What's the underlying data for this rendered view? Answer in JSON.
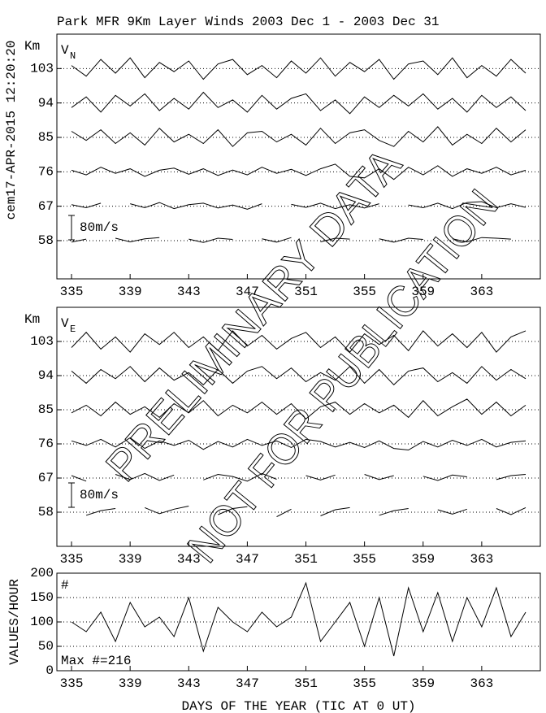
{
  "title": "Park MFR 9Km Layer Winds 2003 Dec  1 - 2003 Dec 31",
  "timestamp": "cem17-APR-2015 12:20:20",
  "watermark": [
    "PRELIMINARY DATA",
    "NOT FOR PUBLICATION"
  ],
  "chart_data": [
    {
      "type": "line",
      "ylabel": "Km",
      "panel_label": "V",
      "panel_label_sub": "N",
      "scale_bar": {
        "value": 80,
        "label": "80m/s"
      },
      "xlim": [
        334,
        367
      ],
      "xticks": [
        335,
        339,
        343,
        347,
        351,
        355,
        359,
        363
      ],
      "ylim": [
        48,
        112
      ],
      "yticks": [
        58,
        67,
        76,
        85,
        94,
        103
      ],
      "grid": true,
      "x": [
        335,
        336,
        337,
        338,
        339,
        340,
        341,
        342,
        343,
        344,
        345,
        346,
        347,
        348,
        349,
        350,
        351,
        352,
        353,
        354,
        355,
        356,
        357,
        358,
        359,
        360,
        361,
        362,
        363,
        364,
        365,
        366
      ],
      "series": [
        {
          "offset": 103,
          "color": "#000000",
          "values": [
            10,
            -25,
            30,
            -15,
            35,
            -30,
            20,
            -10,
            25,
            -35,
            15,
            30,
            -20,
            10,
            -30,
            25,
            -15,
            35,
            -25,
            20,
            -10,
            30,
            -35,
            15,
            25,
            -20,
            35,
            -30,
            10,
            -25,
            30,
            -15
          ]
        },
        {
          "offset": 94,
          "color": "#000000",
          "values": [
            -15,
            20,
            -30,
            25,
            -10,
            30,
            -25,
            15,
            -20,
            35,
            -15,
            10,
            -30,
            25,
            -20,
            15,
            30,
            -25,
            10,
            -35,
            20,
            -15,
            25,
            -10,
            30,
            -20,
            15,
            -30,
            25,
            -15,
            20,
            -25
          ]
        },
        {
          "offset": 85,
          "color": "#000000",
          "values": [
            20,
            -10,
            25,
            -20,
            15,
            -25,
            30,
            -15,
            10,
            -20,
            25,
            -30,
            15,
            20,
            -15,
            10,
            -25,
            30,
            -20,
            15,
            25,
            -10,
            -30,
            20,
            -15,
            35,
            -25,
            10,
            -20,
            30,
            -15,
            25
          ]
        },
        {
          "offset": 76,
          "color": "#000000",
          "values": [
            5,
            -10,
            15,
            -5,
            10,
            -15,
            5,
            12,
            -8,
            10,
            -12,
            6,
            -10,
            15,
            -5,
            8,
            -12,
            10,
            25,
            -15,
            -20,
            10,
            -25,
            15,
            -10,
            20,
            -15,
            10,
            -5,
            15,
            -10,
            5
          ]
        },
        {
          "offset": 67,
          "color": "#000000",
          "values": [
            5,
            -5,
            10,
            null,
            8,
            -5,
            12,
            -8,
            5,
            10,
            -6,
            4,
            -10,
            8,
            null,
            6,
            -4,
            10,
            -8,
            5,
            -6,
            8,
            null,
            4,
            -5,
            10,
            -8,
            12,
            15,
            -5,
            8,
            -4
          ]
        },
        {
          "offset": 58,
          "color": "#000000",
          "values": [
            -5,
            5,
            null,
            8,
            -4,
            6,
            10,
            null,
            5,
            -6,
            8,
            4,
            null,
            6,
            -5,
            10,
            null,
            -4,
            8,
            5,
            null,
            6,
            -5,
            8,
            4,
            null,
            6,
            -4,
            10,
            8,
            5,
            null
          ]
        }
      ]
    },
    {
      "type": "line",
      "ylabel": "Km",
      "panel_label": "V",
      "panel_label_sub": "E",
      "scale_bar": {
        "value": 80,
        "label": "80m/s"
      },
      "xlim": [
        334,
        367
      ],
      "xticks": [
        335,
        339,
        343,
        347,
        351,
        355,
        359,
        363
      ],
      "ylim": [
        49,
        112
      ],
      "yticks": [
        58,
        67,
        76,
        85,
        94,
        103
      ],
      "grid": true,
      "x": [
        335,
        336,
        337,
        338,
        339,
        340,
        341,
        342,
        343,
        344,
        345,
        346,
        347,
        348,
        349,
        350,
        351,
        352,
        353,
        354,
        355,
        356,
        357,
        358,
        359,
        360,
        361,
        362,
        363,
        364,
        365,
        366
      ],
      "series": [
        {
          "offset": 103,
          "color": "#000000",
          "values": [
            -20,
            30,
            -25,
            15,
            -35,
            25,
            -10,
            30,
            -20,
            15,
            -30,
            35,
            -15,
            20,
            -25,
            10,
            30,
            -20,
            15,
            -35,
            25,
            -10,
            20,
            -30,
            35,
            -15,
            25,
            -20,
            30,
            -35,
            15,
            35
          ]
        },
        {
          "offset": 94,
          "color": "#000000",
          "values": [
            15,
            -25,
            20,
            -10,
            30,
            -20,
            25,
            -15,
            10,
            -30,
            20,
            -25,
            15,
            30,
            -10,
            25,
            -20,
            10,
            -15,
            30,
            -25,
            20,
            -30,
            15,
            25,
            -20,
            10,
            -25,
            30,
            -15,
            20,
            -10
          ]
        },
        {
          "offset": 85,
          "color": "#000000",
          "values": [
            -10,
            15,
            -20,
            25,
            -15,
            10,
            -25,
            20,
            -10,
            30,
            -20,
            15,
            -10,
            25,
            -15,
            20,
            -30,
            10,
            25,
            -15,
            20,
            -10,
            15,
            -25,
            30,
            -20,
            10,
            35,
            -15,
            25,
            -20,
            15
          ]
        },
        {
          "offset": 76,
          "color": "#000000",
          "values": [
            10,
            -5,
            15,
            -10,
            20,
            -15,
            10,
            -5,
            12,
            -18,
            8,
            -10,
            15,
            -5,
            10,
            -12,
            15,
            8,
            -10,
            5,
            -12,
            10,
            -15,
            -20,
            8,
            -10,
            12,
            -5,
            15,
            -10,
            5,
            10
          ]
        },
        {
          "offset": 67,
          "color": "#000000",
          "values": [
            8,
            -10,
            null,
            12,
            -5,
            15,
            -8,
            10,
            null,
            -6,
            12,
            5,
            -10,
            15,
            -4,
            null,
            8,
            -6,
            10,
            null,
            12,
            -5,
            8,
            null,
            6,
            -8,
            10,
            4,
            null,
            -5,
            8,
            12
          ]
        },
        {
          "offset": 58,
          "color": "#000000",
          "values": [
            null,
            -10,
            5,
            12,
            null,
            15,
            -5,
            10,
            20,
            null,
            -8,
            12,
            18,
            null,
            -15,
            10,
            null,
            -12,
            8,
            15,
            null,
            -10,
            5,
            12,
            null,
            8,
            -6,
            10,
            null,
            12,
            -8,
            15
          ]
        }
      ]
    },
    {
      "type": "line",
      "ylabel": "VALUES/HOUR",
      "annotation": "#",
      "max_label": "Max #=216",
      "xlabel": "DAYS OF THE YEAR (TIC AT 0 UT)",
      "xlim": [
        334,
        367
      ],
      "xticks": [
        335,
        339,
        343,
        347,
        351,
        355,
        359,
        363
      ],
      "ylim": [
        0,
        200
      ],
      "yticks": [
        0,
        50,
        100,
        150,
        200
      ],
      "grid_values": [
        50,
        100,
        150
      ],
      "x": [
        335,
        336,
        337,
        338,
        339,
        340,
        341,
        342,
        343,
        344,
        345,
        346,
        347,
        348,
        349,
        350,
        351,
        352,
        353,
        354,
        355,
        356,
        357,
        358,
        359,
        360,
        361,
        362,
        363,
        364,
        365,
        366
      ],
      "series": [
        {
          "color": "#000000",
          "values": [
            100,
            80,
            120,
            60,
            140,
            90,
            110,
            70,
            150,
            40,
            130,
            100,
            80,
            120,
            90,
            110,
            180,
            60,
            100,
            140,
            50,
            150,
            30,
            170,
            80,
            160,
            60,
            150,
            90,
            170,
            70,
            120
          ]
        }
      ]
    }
  ]
}
